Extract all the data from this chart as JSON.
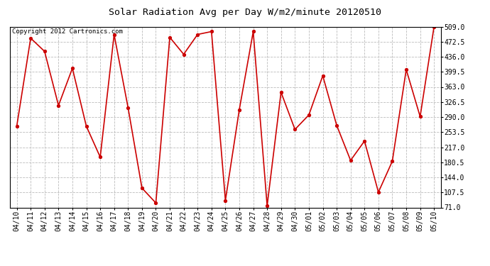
{
  "title": "Solar Radiation Avg per Day W/m2/minute 20120510",
  "copyright": "Copyright 2012 Cartronics.com",
  "x_labels": [
    "04/10",
    "04/11",
    "04/12",
    "04/13",
    "04/14",
    "04/15",
    "04/16",
    "04/17",
    "04/18",
    "04/19",
    "04/20",
    "04/21",
    "04/22",
    "04/23",
    "04/24",
    "04/25",
    "04/26",
    "04/27",
    "04/28",
    "04/29",
    "04/30",
    "05/01",
    "05/02",
    "05/03",
    "05/04",
    "05/05",
    "05/06",
    "05/07",
    "05/08",
    "05/09",
    "05/10"
  ],
  "y_values": [
    268,
    481,
    449,
    318,
    408,
    268,
    193,
    490,
    313,
    118,
    82,
    483,
    442,
    490,
    497,
    88,
    308,
    497,
    75,
    350,
    260,
    295,
    390,
    270,
    185,
    232,
    108,
    183,
    405,
    291,
    509
  ],
  "y_ticks": [
    71.0,
    107.5,
    144.0,
    180.5,
    217.0,
    253.5,
    290.0,
    326.5,
    363.0,
    399.5,
    436.0,
    472.5,
    509.0
  ],
  "y_min": 71.0,
  "y_max": 509.0,
  "line_color": "#cc0000",
  "marker_color": "#cc0000",
  "bg_color": "#ffffff",
  "plot_bg_color": "#ffffff",
  "grid_color": "#bbbbbb",
  "title_fontsize": 9.5,
  "copyright_fontsize": 6.5,
  "tick_fontsize": 7
}
